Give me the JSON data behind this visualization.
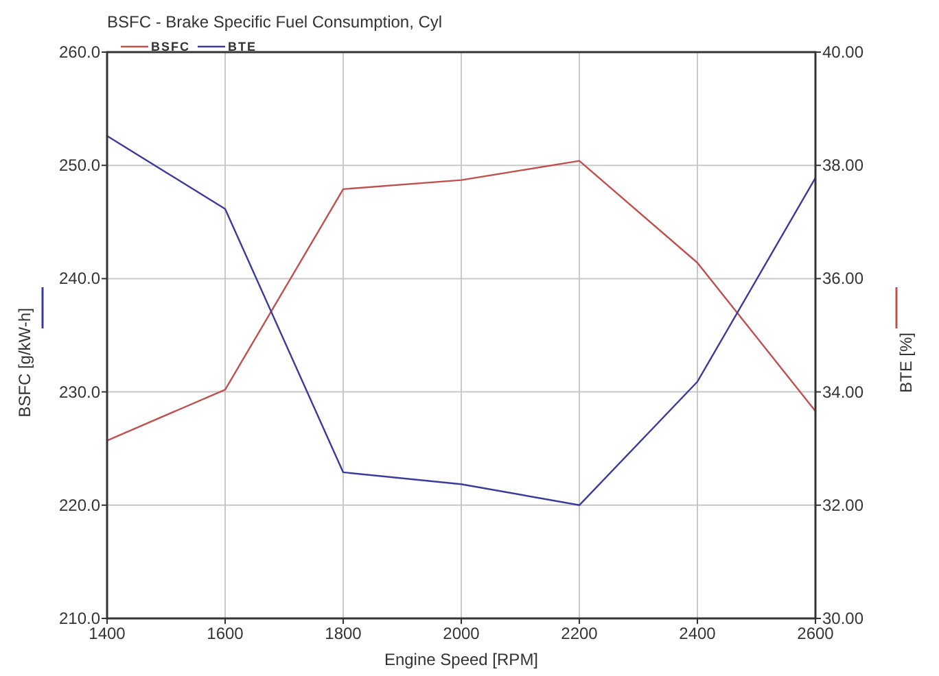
{
  "chart_data": {
    "type": "line",
    "title": "BSFC - Brake Specific Fuel Consumption, Cyl",
    "xlabel": "Engine Speed [RPM]",
    "ylabel": "BSFC [g/kW-h]",
    "y2label": "BTE [%]",
    "x": [
      1400,
      1600,
      1800,
      2000,
      2200,
      2400,
      2600
    ],
    "series": [
      {
        "name": "BSFC",
        "color": "#c0504d",
        "values": [
          225.7,
          230.2,
          247.9,
          248.7,
          250.4,
          241.4,
          228.3
        ]
      },
      {
        "name": "BTE",
        "color": "#3a3a9c",
        "axis": "y2",
        "values": [
          38.52,
          37.23,
          32.58,
          32.37,
          32.0,
          34.18,
          37.78
        ]
      }
    ],
    "xlim": [
      1400,
      2600
    ],
    "xticks": [
      1400,
      1600,
      1800,
      2000,
      2200,
      2400,
      2600
    ],
    "ylim": [
      210,
      260
    ],
    "yticks": [
      {
        "value": 210,
        "label": "210.0"
      },
      {
        "value": 220,
        "label": "220.0"
      },
      {
        "value": 230,
        "label": "230.0"
      },
      {
        "value": 240,
        "label": "240.0"
      },
      {
        "value": 250,
        "label": "250.0"
      },
      {
        "value": 260,
        "label": "260.0"
      }
    ],
    "y2lim": [
      30,
      40
    ],
    "y2ticks": [
      {
        "value": 30,
        "label": "30.00"
      },
      {
        "value": 32,
        "label": "32.00"
      },
      {
        "value": 34,
        "label": "34.00"
      },
      {
        "value": 36,
        "label": "36.00"
      },
      {
        "value": 38,
        "label": "38.00"
      },
      {
        "value": 40,
        "label": "40.00"
      }
    ],
    "grid": true,
    "legend": "top left",
    "marker": "none",
    "line_style": "solid"
  }
}
